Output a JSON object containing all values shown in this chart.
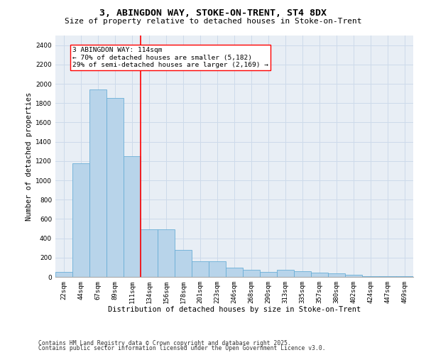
{
  "title_line1": "3, ABINGDON WAY, STOKE-ON-TRENT, ST4 8DX",
  "title_line2": "Size of property relative to detached houses in Stoke-on-Trent",
  "xlabel": "Distribution of detached houses by size in Stoke-on-Trent",
  "ylabel": "Number of detached properties",
  "categories": [
    "22sqm",
    "44sqm",
    "67sqm",
    "89sqm",
    "111sqm",
    "134sqm",
    "156sqm",
    "178sqm",
    "201sqm",
    "223sqm",
    "246sqm",
    "268sqm",
    "290sqm",
    "313sqm",
    "335sqm",
    "357sqm",
    "380sqm",
    "402sqm",
    "424sqm",
    "447sqm",
    "469sqm"
  ],
  "values": [
    55,
    1180,
    1940,
    1850,
    1250,
    490,
    490,
    280,
    165,
    165,
    95,
    75,
    55,
    75,
    60,
    45,
    35,
    20,
    10,
    5,
    5
  ],
  "bar_color": "#b8d4ea",
  "bar_edge_color": "#6aaed6",
  "grid_color": "#cddaea",
  "bg_color": "#e8eef5",
  "annotation_text": "3 ABINGDON WAY: 114sqm\n← 70% of detached houses are smaller (5,182)\n29% of semi-detached houses are larger (2,169) →",
  "annotation_box_color": "white",
  "annotation_box_edge_color": "red",
  "vline_color": "red",
  "ylim": [
    0,
    2500
  ],
  "yticks": [
    0,
    200,
    400,
    600,
    800,
    1000,
    1200,
    1400,
    1600,
    1800,
    2000,
    2200,
    2400
  ],
  "footer_line1": "Contains HM Land Registry data © Crown copyright and database right 2025.",
  "footer_line2": "Contains public sector information licensed under the Open Government Licence v3.0.",
  "title_fontsize": 9.5,
  "subtitle_fontsize": 8,
  "axis_label_fontsize": 7.5,
  "tick_fontsize": 6.5,
  "annotation_fontsize": 6.8,
  "footer_fontsize": 5.8
}
